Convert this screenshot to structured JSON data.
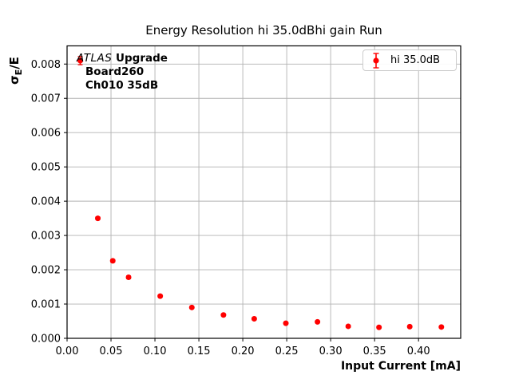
{
  "title": "Energy Resolution hi 35.0dBhi gain Run",
  "annotation": {
    "experiment": "ATLAS",
    "line1_rest": " Upgrade",
    "line2": "Board260",
    "line3": "Ch010 35dB"
  },
  "legend": {
    "label": "hi 35.0dB",
    "marker": "errorbar-dot-icon",
    "marker_color": "#ff0000",
    "position": "upper right"
  },
  "axes": {
    "xlabel": "Input Current [mA]",
    "ylabel_sigma": "σ",
    "ylabel_sub": "E",
    "ylabel_rest": "/E",
    "xtick_labels": [
      "0.00",
      "0.05",
      "0.10",
      "0.15",
      "0.20",
      "0.25",
      "0.30",
      "0.35",
      "0.40"
    ],
    "ytick_labels": [
      "0.000",
      "0.001",
      "0.002",
      "0.003",
      "0.004",
      "0.005",
      "0.006",
      "0.007",
      "0.008"
    ]
  },
  "colors": {
    "marker": "#ff0000",
    "grid": "#b2b2b2",
    "frame": "#000000",
    "legend_border": "#cccccc",
    "background": "#ffffff"
  },
  "chart_data": {
    "type": "scatter",
    "title": "Energy Resolution hi 35.0dBhi gain Run",
    "xlabel": "Input Current [mA]",
    "ylabel": "sigma_E/E",
    "xlim": [
      0,
      0.448
    ],
    "ylim": [
      0,
      0.00853
    ],
    "grid": true,
    "legend_position": "upper right",
    "series": [
      {
        "name": "hi 35.0dB",
        "color": "#ff0000",
        "marker": "circle",
        "x": [
          0.015,
          0.035,
          0.052,
          0.07,
          0.106,
          0.142,
          0.178,
          0.213,
          0.249,
          0.285,
          0.32,
          0.355,
          0.39,
          0.426
        ],
        "y": [
          0.0081,
          0.0035,
          0.00226,
          0.00178,
          0.00123,
          0.0009,
          0.00068,
          0.00057,
          0.00044,
          0.00048,
          0.00035,
          0.00032,
          0.00034,
          0.00033
        ],
        "yerr": [
          0.00012,
          4e-05,
          4e-05,
          4e-05,
          3e-05,
          3e-05,
          3e-05,
          3e-05,
          3e-05,
          3e-05,
          3e-05,
          3e-05,
          3e-05,
          3e-05
        ]
      }
    ]
  }
}
